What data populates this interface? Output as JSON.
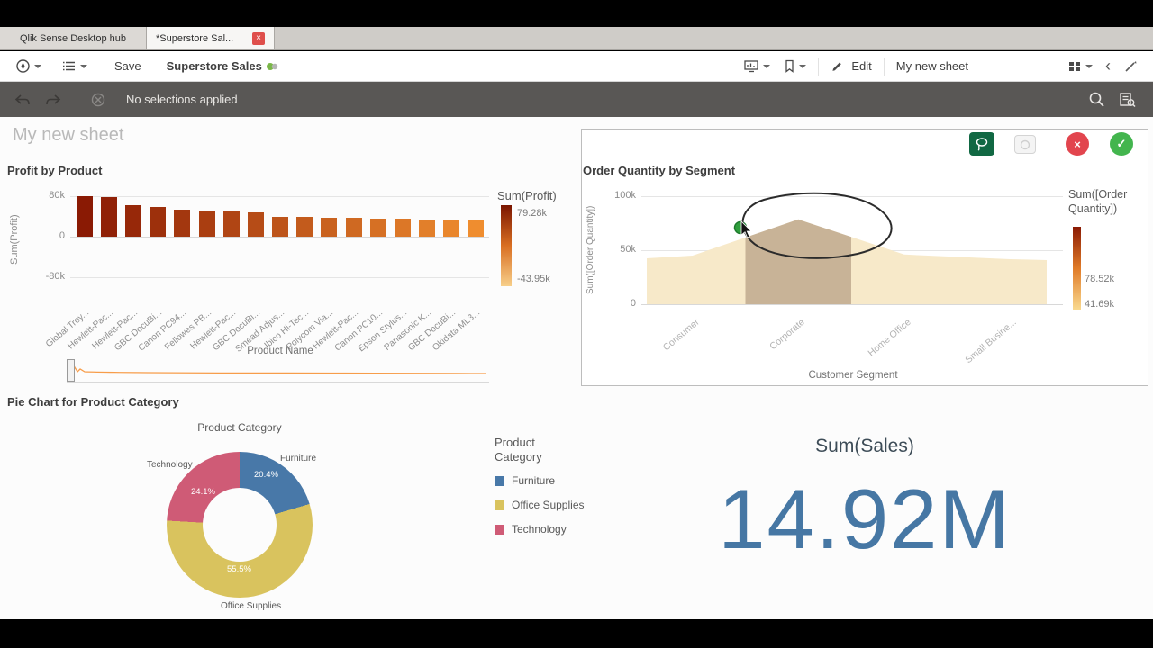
{
  "tabs": {
    "hub_label": "Qlik Sense Desktop hub",
    "app_label": "*Superstore Sal...",
    "close_glyph": "×"
  },
  "toolbar": {
    "save_label": "Save",
    "app_title": "Superstore Sales",
    "edit_label": "Edit",
    "sheet_name": "My new sheet"
  },
  "selections_bar": {
    "status": "No selections applied"
  },
  "sheet": {
    "title": "My new sheet"
  },
  "chart_data": [
    {
      "id": "profit-by-product",
      "type": "bar",
      "title": "Profit by Product",
      "xlabel": "Product Name",
      "ylabel": "Sum(Profit)",
      "ylim_k": [
        -80,
        80
      ],
      "yticks": [
        "80k",
        "0",
        "-80k"
      ],
      "categories": [
        "Global Troy...",
        "Hewlett-Pac...",
        "Hewlett-Pac...",
        "GBC DocuBi...",
        "Canon PC94...",
        "Fellowes PB...",
        "Hewlett-Pac...",
        "GBC DocuBi...",
        "Smead Adjus...",
        "Ibico Hi-Tec...",
        "Polycom Via...",
        "Hewlett-Pac...",
        "Canon PC10...",
        "Epson Stylus...",
        "Panasonic K...",
        "GBC DocuBi...",
        "Okidata ML3..."
      ],
      "values_k": [
        79.3,
        77.5,
        62,
        58.5,
        53.5,
        51.5,
        50,
        47.5,
        39.5,
        38.5,
        37.5,
        37,
        36,
        35.5,
        34.5,
        34,
        32.5
      ],
      "bar_color_dark": "#8a1a04",
      "bar_color_light": "#ef8d2f",
      "legend": {
        "title": "Sum(Profit)",
        "max": "79.28k",
        "min": "-43.95k",
        "gradient": [
          "#7a1500",
          "#d96f22",
          "#f7cf8a"
        ]
      }
    },
    {
      "id": "order-quantity-by-segment",
      "type": "area",
      "title": "Order Quantity by Segment",
      "xlabel": "Customer Segment",
      "ylabel": "Sum([Order Quantity])",
      "ylim_k": [
        0,
        100
      ],
      "yticks": [
        "100k",
        "50k",
        "0"
      ],
      "categories": [
        "Consumer",
        "Corporate",
        "Home Office",
        "Small Busine..."
      ],
      "values_k": [
        45,
        78.52,
        46,
        41.69
      ],
      "selected_category": "Corporate",
      "area_color": "#f7e9c9",
      "selected_color": "#a98f77",
      "point_color": "#2f9e3c",
      "legend": {
        "title": "Sum([Order Quantity])",
        "max": "78.52k",
        "min": "41.69k",
        "gradient": [
          "#8a1a04",
          "#e07b28",
          "#f9d98f"
        ]
      }
    },
    {
      "id": "product-category-pie",
      "type": "pie",
      "title": "Pie Chart for Product Category",
      "dimension_title": "Product Category",
      "legend_title": "Product Category",
      "slices": [
        {
          "label": "Furniture",
          "pct": 20.4,
          "pct_label": "20.4%",
          "color": "#4878a8"
        },
        {
          "label": "Office Supplies",
          "pct": 55.5,
          "pct_label": "55.5%",
          "color": "#d9c35e"
        },
        {
          "label": "Technology",
          "pct": 24.1,
          "pct_label": "24.1%",
          "color": "#cf5b76"
        }
      ]
    },
    {
      "id": "sales-kpi",
      "type": "kpi",
      "label": "Sum(Sales)",
      "value": "14.92M",
      "value_color": "#4677a4"
    }
  ]
}
